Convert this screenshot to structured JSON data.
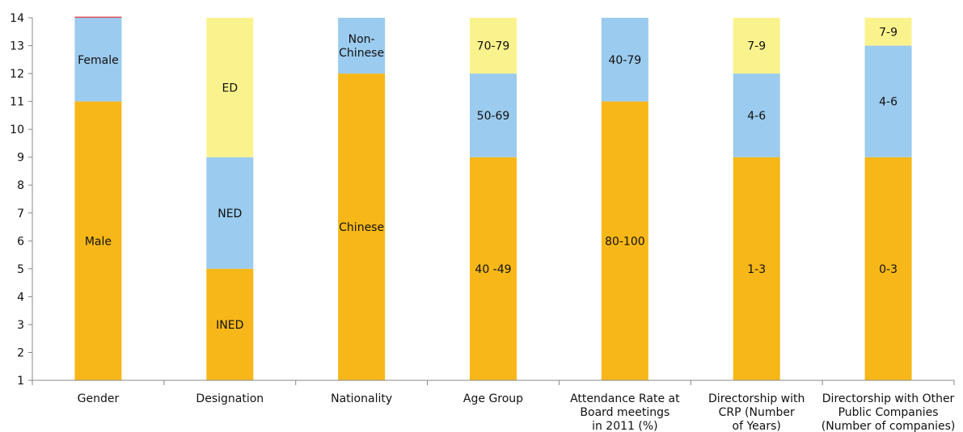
{
  "chart_data": {
    "type": "bar",
    "stacked": true,
    "title": "",
    "xlabel": "",
    "ylabel": "",
    "ylim": [
      1,
      14
    ],
    "yticks": [
      1,
      2,
      3,
      4,
      5,
      6,
      7,
      8,
      9,
      10,
      11,
      12,
      13,
      14
    ],
    "grid": false,
    "legend": "none",
    "colors": {
      "orange": "#F7B718",
      "blue": "#9BCBEE",
      "yellow": "#FAF38D",
      "red": "#E04850",
      "axis": "#888888"
    },
    "categories": [
      {
        "label": [
          "Gender"
        ],
        "segments": [
          {
            "label": [
              "Male"
            ],
            "value": 11,
            "color": "orange"
          },
          {
            "label": [
              "Female"
            ],
            "value": 14,
            "color": "blue"
          },
          {
            "label": [],
            "value": 14.04,
            "color": "red"
          }
        ]
      },
      {
        "label": [
          "Designation"
        ],
        "segments": [
          {
            "label": [
              "INED"
            ],
            "value": 5,
            "color": "orange"
          },
          {
            "label": [
              "NED"
            ],
            "value": 9,
            "color": "blue"
          },
          {
            "label": [
              "ED"
            ],
            "value": 14,
            "color": "yellow"
          }
        ]
      },
      {
        "label": [
          "Nationality"
        ],
        "segments": [
          {
            "label": [
              "Chinese"
            ],
            "value": 12,
            "color": "orange"
          },
          {
            "label": [
              "Non-",
              "Chinese"
            ],
            "value": 14,
            "color": "blue"
          }
        ]
      },
      {
        "label": [
          "Age Group"
        ],
        "segments": [
          {
            "label": [
              "40 -49"
            ],
            "value": 9,
            "color": "orange"
          },
          {
            "label": [
              "50-69"
            ],
            "value": 12,
            "color": "blue"
          },
          {
            "label": [
              "70-79"
            ],
            "value": 14,
            "color": "yellow"
          }
        ]
      },
      {
        "label": [
          "Attendance Rate at",
          "Board meetings",
          "in 2011 (%)"
        ],
        "segments": [
          {
            "label": [
              "80-100"
            ],
            "value": 11,
            "color": "orange"
          },
          {
            "label": [
              "40-79"
            ],
            "value": 14,
            "color": "blue"
          }
        ]
      },
      {
        "label": [
          "Directorship with",
          "CRP (Number",
          "of Years)"
        ],
        "segments": [
          {
            "label": [
              "1-3"
            ],
            "value": 9,
            "color": "orange"
          },
          {
            "label": [
              "4-6"
            ],
            "value": 12,
            "color": "blue"
          },
          {
            "label": [
              "7-9"
            ],
            "value": 14,
            "color": "yellow"
          }
        ]
      },
      {
        "label": [
          "Directorship with Other",
          "Public Companies",
          "(Number of companies)"
        ],
        "segments": [
          {
            "label": [
              "0-3"
            ],
            "value": 9,
            "color": "orange"
          },
          {
            "label": [
              "4-6"
            ],
            "value": 13,
            "color": "blue"
          },
          {
            "label": [
              "7-9"
            ],
            "value": 14,
            "color": "yellow"
          }
        ]
      }
    ]
  }
}
